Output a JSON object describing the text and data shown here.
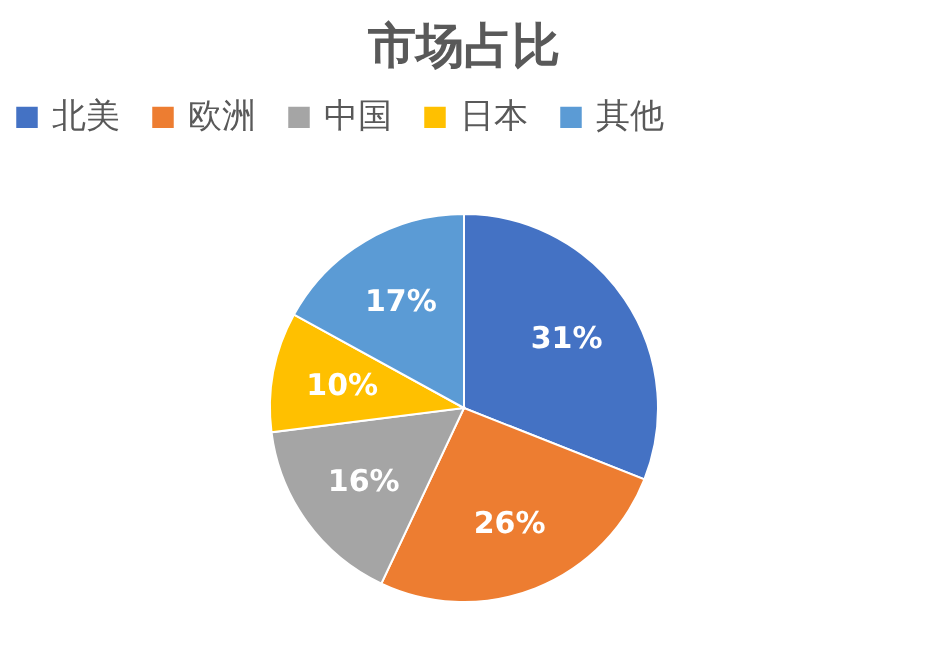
{
  "chart_data": {
    "type": "pie",
    "title": "市场占比",
    "categories": [
      "北美",
      "欧洲",
      "中国",
      "日本",
      "其他"
    ],
    "values": [
      31,
      26,
      16,
      10,
      17
    ],
    "colors": [
      "#4472c4",
      "#ed7d31",
      "#a5a5a5",
      "#ffc000",
      "#5b9bd5"
    ],
    "value_labels": [
      "31%",
      "26%",
      "16%",
      "10%",
      "17%"
    ],
    "legend": "top"
  }
}
